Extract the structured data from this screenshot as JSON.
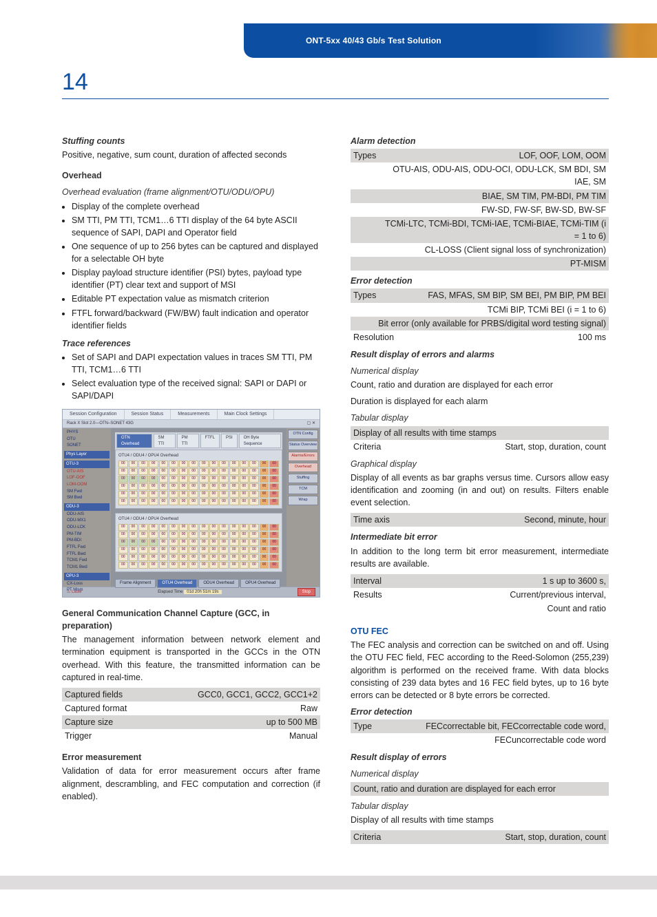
{
  "banner": {
    "title": "ONT-5xx 40/43 Gb/s Test Solution"
  },
  "pageNumber": "14",
  "left": {
    "stuffing": {
      "head": "Stuffing counts",
      "text": "Positive, negative, sum count, duration of affected seconds"
    },
    "overhead": {
      "head": "Overhead",
      "sub": "Overhead evaluation (frame alignment/OTU/ODU/OPU)",
      "items": [
        "Display of the complete overhead",
        "SM TTI, PM TTI, TCM1…6 TTI display of the 64 byte ASCII sequence of SAPI, DAPI and Operator field",
        "One sequence of up to 256 bytes can be captured and displayed for a selectable OH byte",
        "Display payload structure identifier (PSI) bytes, payload type identifier (PT) clear text and support of MSI",
        "Editable PT expectation value as mismatch criterion",
        "FTFL forward/backward (FW/BW) fault indication and operator identifier fields"
      ]
    },
    "trace": {
      "head": "Trace references",
      "items": [
        "Set of SAPI and DAPI expectation values in traces SM TTI, PM TTI, TCM1…6 TTI",
        "Select evaluation type of the received signal: SAPI or DAPI or SAPI/DAPI"
      ]
    },
    "screenshot": {
      "topTabs": [
        "Session Configuration",
        "Session Status",
        "Measurements",
        "Main Clock Settings"
      ],
      "subTabs": [
        "OTN Overhead",
        "SM TTI",
        "PM TTI",
        "FTFL",
        "PSI",
        "OH Byte Sequence"
      ],
      "bottomTabs": [
        "Frame Alignment",
        "OTU4 Overhead",
        "ODU4 Overhead",
        "OPU4 Overhead"
      ],
      "barTitle": "Rack X Slot 2.0—OTN–SONET 43G",
      "leftTree": {
        "g1": "Phys Layer",
        "g1items": [
          "PHYS",
          "OTU",
          "SONET"
        ],
        "g2": "OTU-3",
        "g2items": [
          "OTU-AIS",
          "LOF-OOF",
          "LOM-OOM",
          "SM Fwd",
          "SM Bwd"
        ],
        "g3": "ODU-3",
        "g3items": [
          "ODU-AIS",
          "ODU-MX1",
          "ODU-LCK",
          "PM-TIM",
          "PM-BDI",
          "FTFL Fwd",
          "FTFL Bwd",
          "TCM1 Fwd",
          "TCM1 Bwd"
        ],
        "g4": "OPU-3",
        "g4items": [
          "CX-Loss",
          "PT Mism"
        ]
      },
      "rightBtns": [
        "OTN Config",
        "Status Overview",
        "Alarms/Errors",
        "Overhead",
        "Stuffing",
        "TCM",
        "Wrap"
      ],
      "gridTitles": [
        "OTU4 / ODU4 / OPU4 Overhead",
        "OTU4 / ODU4 / OPU4 Overhead"
      ],
      "status": {
        "laser": "Laser",
        "elapsed": "Elapsed Time",
        "time": "01d 20h 51m 19s",
        "stop": "Stop"
      }
    },
    "gcc": {
      "head": "General Communication Channel Capture (GCC, in preparation)",
      "text": "The management information between network element and termination equipment is transported in the GCCs in the OTN overhead. With this feature, the transmitted information can be captured in real-time.",
      "rows": [
        {
          "k": "Captured fields",
          "v": "GCC0, GCC1, GCC2, GCC1+2",
          "s": true
        },
        {
          "k": "Captured format",
          "v": "Raw",
          "s": false
        },
        {
          "k": "Capture size",
          "v": "up to 500 MB",
          "s": true
        },
        {
          "k": "Trigger",
          "v": "Manual",
          "s": false
        }
      ]
    },
    "errmeas": {
      "head": "Error measurement",
      "text": "Validation of data for error measurement occurs after frame alignment, descrambling, and FEC computation and correction (if enabled)."
    }
  },
  "right": {
    "alarm": {
      "head": "Alarm detection",
      "rows": [
        {
          "k": "Types",
          "v": "LOF, OOF, LOM, OOM",
          "s": true
        },
        {
          "k": "",
          "v": "OTU-AIS, ODU-AIS, ODU-OCI, ODU-LCK, SM BDI, SM IAE, SM",
          "s": false
        },
        {
          "k": "",
          "v": "BIAE, SM TIM, PM-BDI, PM TIM",
          "s": true
        },
        {
          "k": "",
          "v": "FW-SD, FW-SF, BW-SD, BW-SF",
          "s": false
        },
        {
          "k": "",
          "v": "TCMi-LTC, TCMi-BDI, TCMi-IAE, TCMi-BIAE, TCMi-TIM (i = 1 to 6)",
          "s": true
        },
        {
          "k": "",
          "v": "CL-LOSS (Client signal loss of synchronization)",
          "s": false
        },
        {
          "k": "",
          "v": "PT-MISM",
          "s": true
        }
      ]
    },
    "errdet": {
      "head": "Error detection",
      "rows": [
        {
          "k": "Types",
          "v": "FAS, MFAS, SM BIP, SM BEI, PM BIP, PM BEI",
          "s": true
        },
        {
          "k": "",
          "v": "TCMi BIP, TCMi BEI (i = 1 to 6)",
          "s": false
        },
        {
          "k": "",
          "v": "Bit error (only available for PRBS/digital word testing signal)",
          "s": true
        },
        {
          "k": "Resolution",
          "v": "100 ms",
          "s": false
        }
      ]
    },
    "resdisp": {
      "head": "Result display of errors and alarms",
      "num": {
        "sub": "Numerical display",
        "l1": "Count, ratio and duration are displayed for each error",
        "l2": "Duration is displayed for each alarm"
      },
      "tab": {
        "sub": "Tabular display",
        "rows": [
          {
            "k": "Display of all results with time stamps",
            "v": "",
            "s": true
          },
          {
            "k": "Criteria",
            "v": "Start, stop, duration, count",
            "s": false
          }
        ]
      },
      "graph": {
        "sub": "Graphical display",
        "text": "Display of all events as bar graphs versus time. Cursors allow easy identification and zooming (in and out) on results. Filters enable event selection.",
        "rows": [
          {
            "k": "Time axis",
            "v": "Second, minute, hour",
            "s": true
          }
        ]
      }
    },
    "interm": {
      "head": "Intermediate bit error",
      "text": "In addition to the long term bit error measurement, intermediate results are available.",
      "rows": [
        {
          "k": "Interval",
          "v": "1 s up to 3600 s,",
          "s": true
        },
        {
          "k": "Results",
          "v": "Current/previous interval,",
          "s": false
        },
        {
          "k": "",
          "v": "Count and ratio",
          "s": false
        }
      ]
    },
    "otufec": {
      "head": "OTU FEC",
      "text": "The FEC analysis and correction can be switched on and off. Using the OTU FEC field, FEC according to the Reed-Solomon (255,239) algorithm is performed on the received frame. With data blocks consisting of 239 data bytes and 16 FEC field bytes, up to 16 byte errors can be detected or 8 byte errors be corrected."
    },
    "fec_errdet": {
      "head": "Error detection",
      "rows": [
        {
          "k": "Type",
          "v": "FECcorrectable bit, FECcorrectable code word,",
          "s": true
        },
        {
          "k": "",
          "v": "FECuncorrectable code word",
          "s": false
        }
      ]
    },
    "fec_res": {
      "head": "Result display of errors",
      "num": {
        "sub": "Numerical display",
        "rows": [
          {
            "k": "Count, ratio and duration are displayed for each error",
            "v": "",
            "s": true
          }
        ]
      },
      "tab": {
        "sub": "Tabular display",
        "line": "Display of all results with time stamps",
        "rows": [
          {
            "k": "Criteria",
            "v": "Start, stop, duration, count",
            "s": true
          }
        ]
      }
    }
  }
}
